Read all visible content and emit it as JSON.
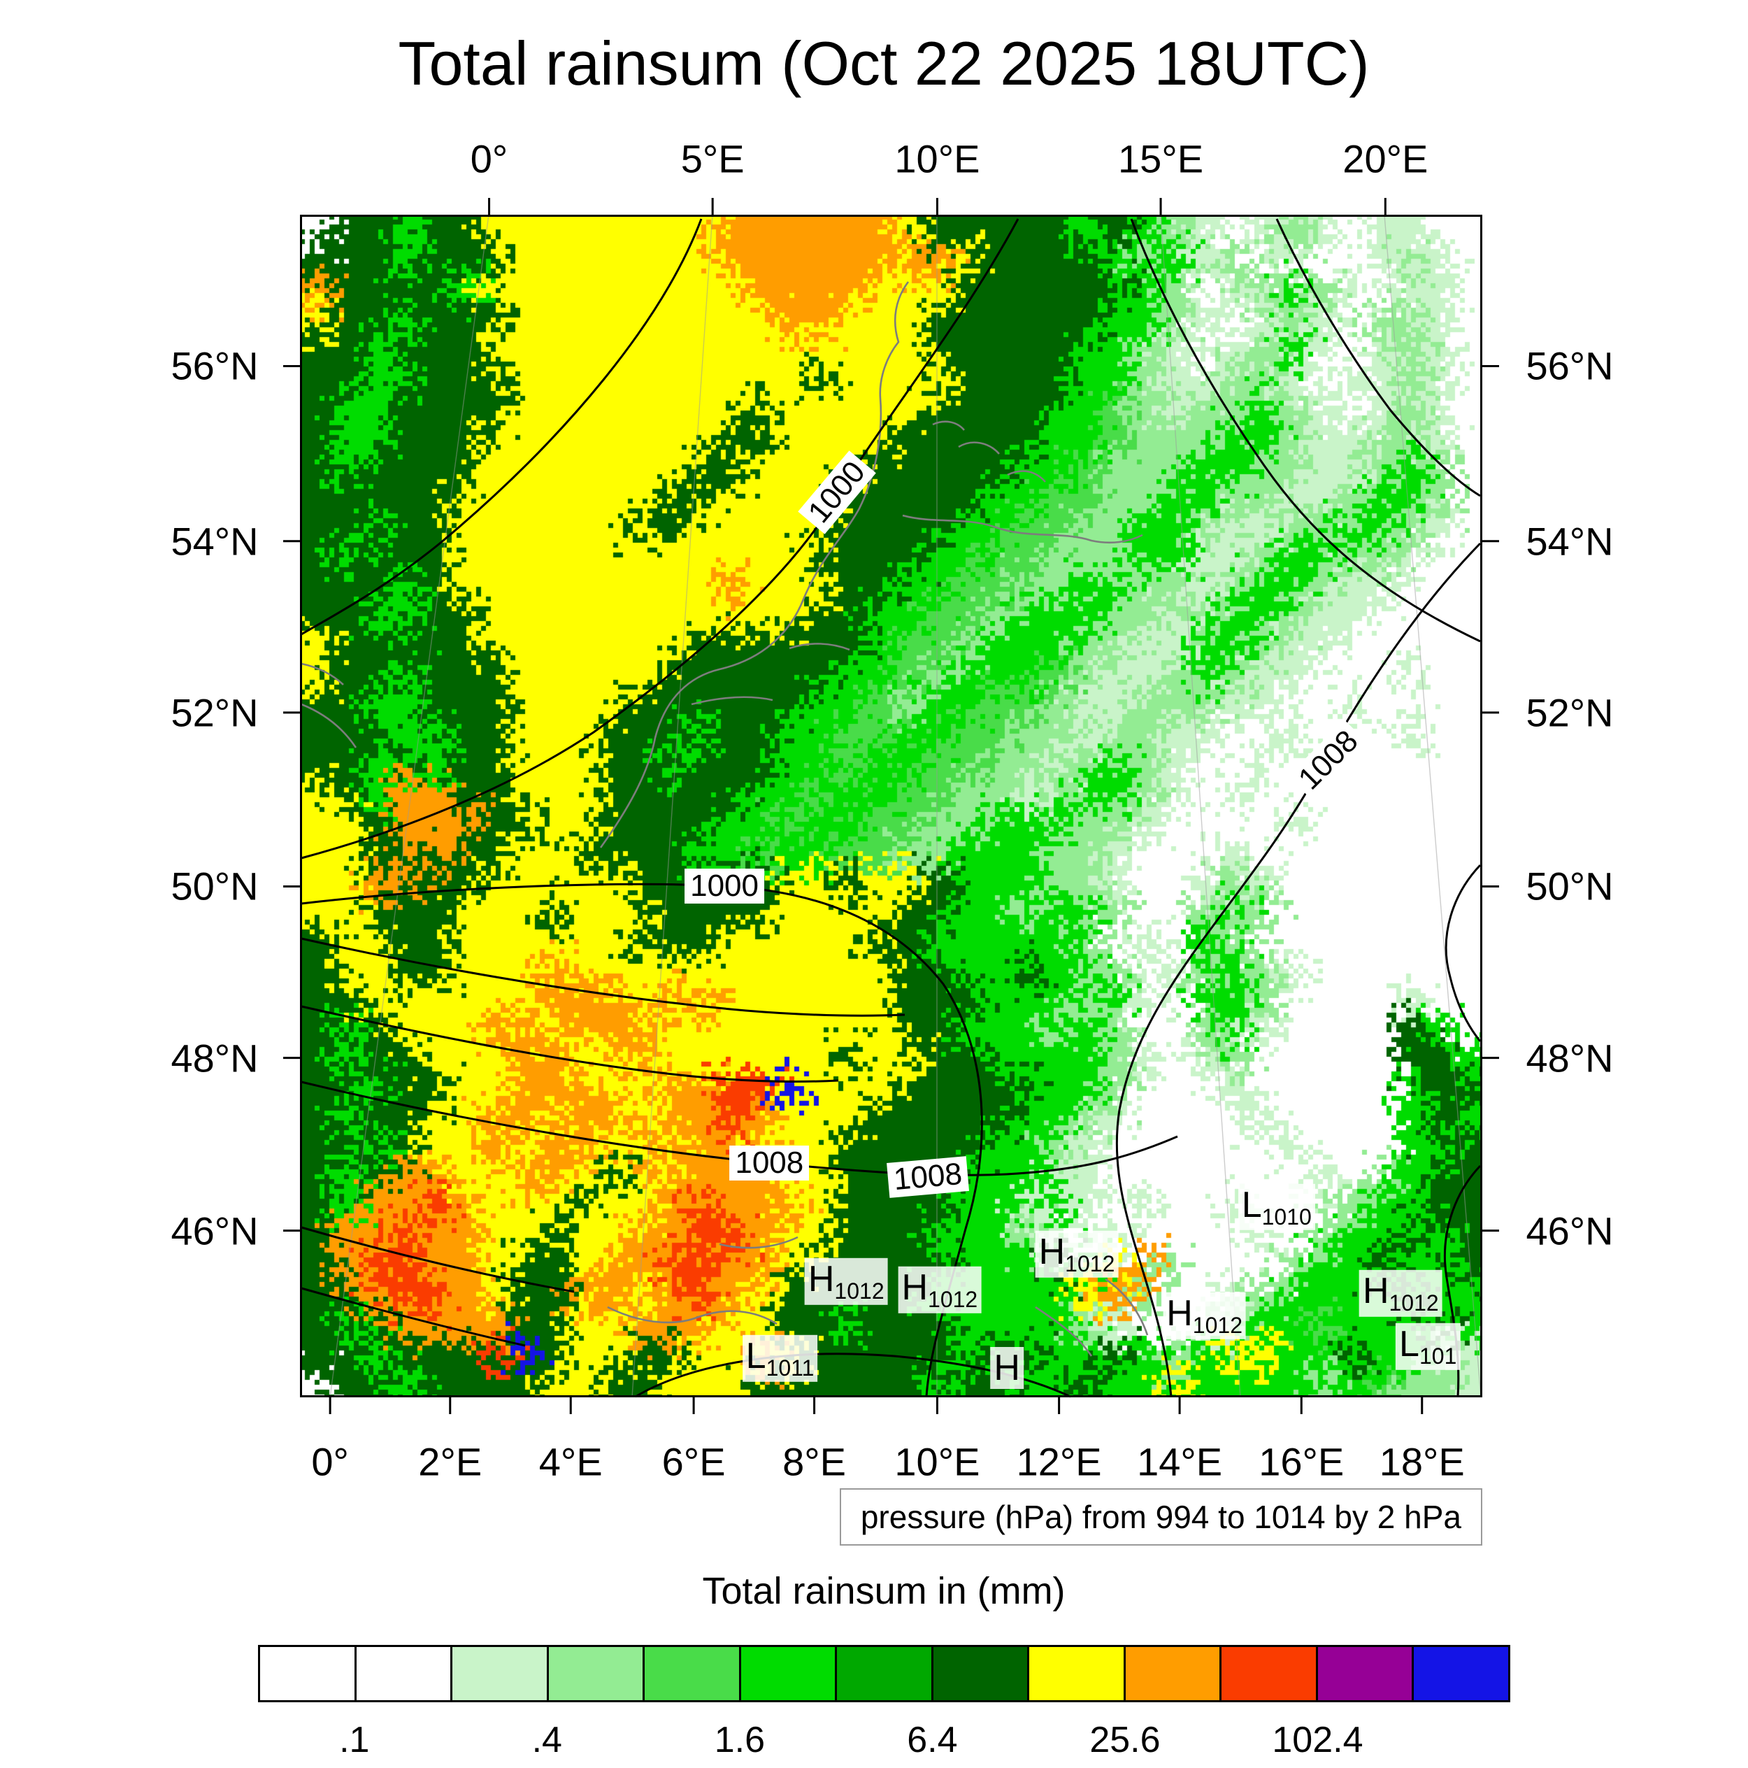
{
  "title": "Total rainsum (Oct 22 2025 18UTC)",
  "pressure_caption": "pressure (hPa) from 994 to 1014 by 2 hPa",
  "chart_data": {
    "type": "heatmap",
    "title": "Total rainsum (Oct 22 2025 18UTC)",
    "units": "mm",
    "axes": {
      "top": {
        "labels": [
          "0°",
          "5°E",
          "10°E",
          "15°E",
          "20°E"
        ],
        "pos": [
          0.16,
          0.349,
          0.539,
          0.728,
          0.918
        ]
      },
      "bottom": {
        "labels": [
          "0°",
          "2°E",
          "4°E",
          "6°E",
          "8°E",
          "10°E",
          "12°E",
          "14°E",
          "16°E",
          "18°E"
        ],
        "pos": [
          0.0255,
          0.127,
          0.229,
          0.333,
          0.435,
          0.539,
          0.642,
          0.744,
          0.847,
          0.949
        ]
      },
      "left": {
        "labels": [
          "56°N",
          "54°N",
          "52°N",
          "50°N",
          "48°N",
          "46°N"
        ],
        "pos": [
          0.128,
          0.276,
          0.421,
          0.568,
          0.713,
          0.859
        ]
      },
      "right": {
        "labels": [
          "56°N",
          "54°N",
          "52°N",
          "50°N",
          "48°N",
          "46°N"
        ],
        "pos": [
          0.128,
          0.276,
          0.421,
          0.568,
          0.713,
          0.859
        ]
      }
    },
    "legend": {
      "title": "Total rainsum in (mm)",
      "tick_labels": [
        ".1",
        ".4",
        "1.6",
        "6.4",
        "25.6",
        "102.4"
      ],
      "boundary_positions": [
        1,
        3,
        5,
        7,
        9,
        11
      ],
      "colors": [
        "#ffffff",
        "#ffffff",
        "#c9f4c9",
        "#93ec93",
        "#49dc49",
        "#00dc00",
        "#00a800",
        "#006400",
        "#ffff00",
        "#ff9d00",
        "#fa3c00",
        "#960096",
        "#1414e6"
      ]
    },
    "pressure_contours": {
      "caption": "pressure (hPa) from 994 to 1014 by 2 hPa",
      "range_hpa": [
        994,
        1014
      ],
      "interval_hpa": 2,
      "labels": [
        {
          "text": "1000",
          "x": 0.454,
          "y": 0.235,
          "rot": -50
        },
        {
          "text": "1000",
          "x": 0.359,
          "y": 0.568,
          "rot": 0
        },
        {
          "text": "1008",
          "x": 0.87,
          "y": 0.461,
          "rot": -45
        },
        {
          "text": "1008",
          "x": 0.397,
          "y": 0.802,
          "rot": 0
        },
        {
          "text": "1008",
          "x": 0.531,
          "y": 0.814,
          "rot": -5
        }
      ],
      "centers": [
        {
          "letter": "L",
          "value": "1010",
          "x": 0.826,
          "y": 0.839
        },
        {
          "letter": "H",
          "value": "1012",
          "x": 0.657,
          "y": 0.879
        },
        {
          "letter": "H",
          "value": "1012",
          "x": 0.462,
          "y": 0.902
        },
        {
          "letter": "H",
          "value": "1012",
          "x": 0.541,
          "y": 0.909
        },
        {
          "letter": "H",
          "value": "1012",
          "x": 0.765,
          "y": 0.931
        },
        {
          "letter": "H",
          "value": "1012",
          "x": 0.931,
          "y": 0.912
        },
        {
          "letter": "L",
          "value": "101",
          "x": 0.954,
          "y": 0.957
        },
        {
          "letter": "L",
          "value": "1011",
          "x": 0.406,
          "y": 0.967
        },
        {
          "letter": "H",
          "value": "",
          "x": 0.598,
          "y": 0.975
        }
      ]
    },
    "palette": {
      "0": "#ffffff",
      "1": "#ffffff",
      "2": "#c9f4c9",
      "3": "#93ec93",
      "4": "#49dc49",
      "5": "#00dc00",
      "6": "#00a800",
      "7": "#006400",
      "8": "#ffff00",
      "9": "#ff9d00",
      "a": "#fa3c00",
      "b": "#960096",
      "c": "#1414e6"
    },
    "grid": [
      "0775778888888899999987777757532023202200",
      "7775777888888899999999877775352302002320",
      "9777758888888889999888777777530235320220",
      "8775777888888888998887777775532023203320",
      "7757778888888888888887777755320235202320",
      "7755777888888888878888777755322332022320",
      "7557777888888887888887777554323353202320",
      "7557778888888877888877777554333553223320",
      "7577778888888778888777775543335533223530",
      "7777788888887788887777755443355332235530",
      "7757788888877888887777554433553223355320",
      "7577788888888888877775544333552235533200",
      "7775788888888898887755443355332355322000",
      "7755778888888888877554435553323553220000",
      "8777778888888777777544355533225532200000",
      "8775777888887777775543555432235322000200",
      "7755777888877777755435544322333220020000",
      "7775577888777577554455443323322002000200",
      "7757577888775777554554433235320020000000",
      "8759977888777775545544332355320200000000",
      "8879997788777755455443355533200002000000",
      "8877977887777554554433555332000200000000",
      "8899778888877777887887555332002320000000",
      "8877788878887777888877553553003530000000",
      "7887788888877788888775555530205300000000",
      "7887788898888888888877557553023532000000",
      "7788888899989988888877755535205530000200",
      "7578889989998888888877555353003520000750",
      "7577888998898888887887755553202300000775",
      "77577889998899aac88877777553000200000577",
      "75778899899899a9888777775532000020000575",
      "7757889899898998887777755320000002000557",
      "7579988998789999887777555220000000203577",
      "7599a98887889a99987777552520200200035577",
      "799a998878899aa9887775553202000020355757",
      "79aa99877899aa99877777555758930003557557",
      "779aa98779989a98777775555589300235555755",
      "7579999778899988775777555532002355455575",
      "775777ac78877889877777577557535885575532",
      "0775777788778887777775775575585555354332"
    ]
  }
}
